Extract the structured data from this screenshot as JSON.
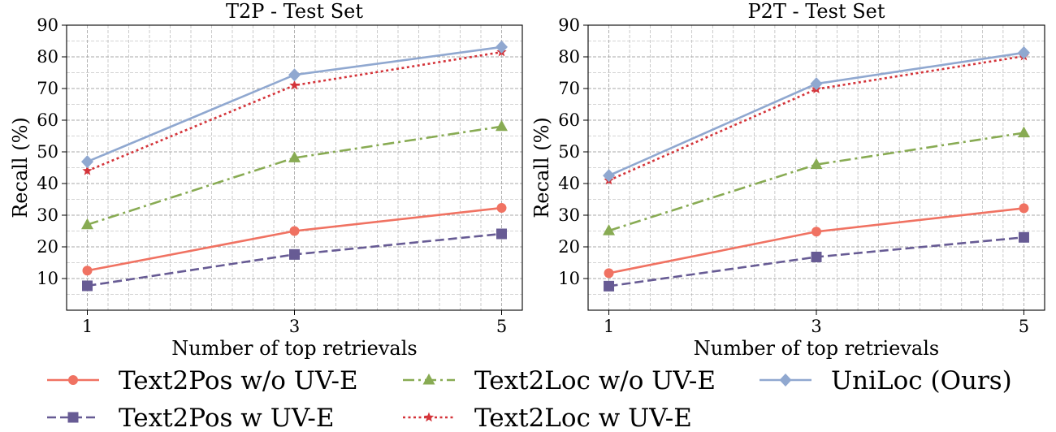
{
  "chart_data": [
    {
      "type": "line",
      "title": "T2P - Test Set",
      "xlabel": "Number of top retrievals",
      "ylabel": "Recall (%)",
      "x": [
        1,
        3,
        5
      ],
      "xticks": [
        "1",
        "3",
        "5"
      ],
      "yticks": [
        "10",
        "20",
        "30",
        "40",
        "50",
        "60",
        "70",
        "80",
        "90"
      ],
      "xlim": [
        0.8,
        5.2
      ],
      "ylim": [
        0,
        90
      ],
      "grid": true,
      "series": [
        {
          "name": "Text2Pos w/o UV-E",
          "values": [
            12.5,
            25.0,
            32.3
          ]
        },
        {
          "name": "Text2Pos w UV-E",
          "values": [
            7.7,
            17.6,
            24.1
          ]
        },
        {
          "name": "Text2Loc w/o UV-E",
          "values": [
            27.0,
            48.1,
            58.0
          ]
        },
        {
          "name": "Text2Loc w UV-E",
          "values": [
            44.0,
            71.0,
            81.5
          ]
        },
        {
          "name": "UniLoc (Ours)",
          "values": [
            46.9,
            74.3,
            83.1
          ]
        }
      ]
    },
    {
      "type": "line",
      "title": "P2T - Test Set",
      "xlabel": "Number of top retrievals",
      "ylabel": "Recall (%)",
      "x": [
        1,
        3,
        5
      ],
      "xticks": [
        "1",
        "3",
        "5"
      ],
      "yticks": [
        "10",
        "20",
        "30",
        "40",
        "50",
        "60",
        "70",
        "80",
        "90"
      ],
      "xlim": [
        0.8,
        5.2
      ],
      "ylim": [
        0,
        90
      ],
      "grid": true,
      "series": [
        {
          "name": "Text2Pos w/o UV-E",
          "values": [
            11.7,
            24.8,
            32.2
          ]
        },
        {
          "name": "Text2Pos w UV-E",
          "values": [
            7.6,
            16.8,
            23.0
          ]
        },
        {
          "name": "Text2Loc w/o UV-E",
          "values": [
            25.1,
            46.0,
            56.0
          ]
        },
        {
          "name": "Text2Loc w UV-E",
          "values": [
            41.0,
            69.8,
            80.2
          ]
        },
        {
          "name": "UniLoc (Ours)",
          "values": [
            42.5,
            71.5,
            81.3
          ]
        }
      ]
    }
  ],
  "series_styles": [
    {
      "name": "Text2Pos w/o UV-E",
      "color": "#f07262",
      "dash": "solid",
      "marker": "circle"
    },
    {
      "name": "Text2Pos w UV-E",
      "color": "#675b94",
      "dash": "dashed",
      "marker": "square"
    },
    {
      "name": "Text2Loc w/o UV-E",
      "color": "#88ab53",
      "dash": "dashdot",
      "marker": "triangle"
    },
    {
      "name": "Text2Loc w UV-E",
      "color": "#d4343a",
      "dash": "dotted",
      "marker": "star"
    },
    {
      "name": "UniLoc (Ours)",
      "color": "#90a8d0",
      "dash": "solid",
      "marker": "diamond"
    }
  ],
  "legend": {
    "placement": "bottom",
    "entries": [
      "Text2Pos w/o UV-E",
      "Text2Loc w/o UV-E",
      "UniLoc (Ours)",
      "Text2Pos w UV-E",
      "Text2Loc w UV-E"
    ]
  }
}
